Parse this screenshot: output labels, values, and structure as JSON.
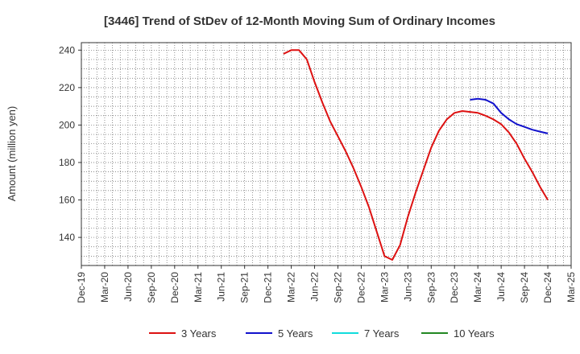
{
  "chart_data": {
    "type": "line",
    "title": "[3446]  Trend of StDev of 12-Month Moving Sum of Ordinary Incomes",
    "ylabel": "Amount (million yen)",
    "xlabel": "",
    "ylim": [
      125,
      244
    ],
    "yticks": [
      140,
      160,
      180,
      200,
      220,
      240
    ],
    "xlim": [
      "2019-12",
      "2025-03"
    ],
    "xticks": [
      "Dec-19",
      "Mar-20",
      "Jun-20",
      "Sep-20",
      "Dec-20",
      "Mar-21",
      "Jun-21",
      "Sep-21",
      "Dec-21",
      "Mar-22",
      "Jun-22",
      "Sep-22",
      "Dec-22",
      "Mar-23",
      "Jun-23",
      "Sep-23",
      "Dec-23",
      "Mar-24",
      "Jun-24",
      "Sep-24",
      "Dec-24",
      "Mar-25"
    ],
    "grid": true,
    "legend_position": "bottom",
    "series": [
      {
        "name": "3 Years",
        "color": "#dd1111",
        "x": [
          "2022-02",
          "2022-03",
          "2022-04",
          "2022-05",
          "2022-06",
          "2022-07",
          "2022-08",
          "2022-09",
          "2022-10",
          "2022-11",
          "2022-12",
          "2023-01",
          "2023-02",
          "2023-03",
          "2023-04",
          "2023-05",
          "2023-06",
          "2023-07",
          "2023-08",
          "2023-09",
          "2023-10",
          "2023-11",
          "2023-12",
          "2024-01",
          "2024-02",
          "2024-03",
          "2024-04",
          "2024-05",
          "2024-06",
          "2024-07",
          "2024-08",
          "2024-09",
          "2024-10",
          "2024-11",
          "2024-12"
        ],
        "values": [
          238,
          240,
          240,
          235,
          223,
          212,
          202,
          194,
          186,
          177,
          167,
          156,
          143,
          130,
          128,
          136,
          151,
          164,
          176,
          188,
          197,
          203,
          206.5,
          207.5,
          207,
          206.5,
          205,
          203,
          200.5,
          196,
          190,
          182,
          175,
          167,
          160
        ]
      },
      {
        "name": "5 Years",
        "color": "#1111cc",
        "x": [
          "2024-02",
          "2024-03",
          "2024-04",
          "2024-05",
          "2024-06",
          "2024-07",
          "2024-08",
          "2024-09",
          "2024-10",
          "2024-11",
          "2024-12"
        ],
        "values": [
          213.5,
          214,
          213.5,
          211.5,
          206.5,
          203,
          200.5,
          199,
          197.5,
          196.5,
          195.5
        ]
      },
      {
        "name": "7 Years",
        "color": "#11dddd",
        "x": [],
        "values": []
      },
      {
        "name": "10 Years",
        "color": "#228822",
        "x": [],
        "values": []
      }
    ]
  }
}
